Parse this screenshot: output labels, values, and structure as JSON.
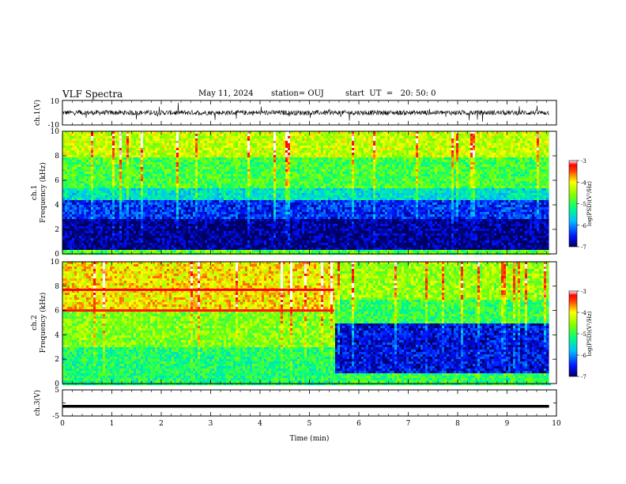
{
  "header": {
    "title": "VLF Spectra",
    "date": "May 11, 2024",
    "station": "station= OUJ",
    "start": "start  UT  =   20: 50: 0"
  },
  "chart_data": [
    {
      "type": "line",
      "panel": "ch1-waveform",
      "ylabel": "ch.1(V)",
      "ylim": [
        -10,
        10
      ],
      "yticks": [
        "10",
        "-10"
      ],
      "description_level": 0,
      "x_range_min": [
        0,
        9.85
      ]
    },
    {
      "type": "heatmap",
      "panel": "ch1-spectrogram",
      "ylabel": "ch.1\nFrequency (kHz)",
      "ylabel_lines": [
        "ch.1",
        "Frequency (kHz)"
      ],
      "ylim": [
        0,
        10
      ],
      "yticks": [
        "0",
        "2",
        "4",
        "6",
        "8",
        "10"
      ],
      "colorbar": {
        "label": "log(PSD)(V²/Hz)",
        "range": [
          -7,
          -3
        ],
        "ticks": [
          "-3",
          "-4",
          "-5",
          "-6",
          "-7"
        ]
      },
      "bands": [
        {
          "f_low": 8.0,
          "f_high": 10.0,
          "level": -4.3
        },
        {
          "f_low": 5.5,
          "f_high": 8.0,
          "level": -4.9
        },
        {
          "f_low": 4.5,
          "f_high": 5.5,
          "level": -5.5
        },
        {
          "f_low": 3.0,
          "f_high": 4.5,
          "level": -6.4
        },
        {
          "f_low": 0.5,
          "f_high": 3.0,
          "level": -6.9
        },
        {
          "f_low": 0.0,
          "f_high": 0.5,
          "level": -4.8
        }
      ]
    },
    {
      "type": "heatmap",
      "panel": "ch2-spectrogram",
      "ylabel_lines": [
        "ch.2",
        "Frequency (kHz)"
      ],
      "ylim": [
        0,
        10
      ],
      "yticks": [
        "0",
        "2",
        "4",
        "6",
        "8",
        "10"
      ],
      "colorbar": {
        "label": "log(PSD)(V²/Hz)",
        "range": [
          -7,
          -3
        ],
        "ticks": [
          "-3",
          "-4",
          "-5",
          "-6",
          "-7"
        ]
      },
      "segments": [
        {
          "t_start": 0,
          "t_end": 5.5,
          "bands": [
            {
              "f_low": 6.0,
              "f_high": 10.0,
              "level": -4.0
            },
            {
              "f_low": 3.0,
              "f_high": 6.0,
              "level": -4.6
            },
            {
              "f_low": 0.0,
              "f_high": 3.0,
              "level": -5.1
            }
          ]
        },
        {
          "t_start": 5.5,
          "t_end": 9.85,
          "bands": [
            {
              "f_low": 7.0,
              "f_high": 10.0,
              "level": -4.5
            },
            {
              "f_low": 5.0,
              "f_high": 7.0,
              "level": -5.0
            },
            {
              "f_low": 1.0,
              "f_high": 5.0,
              "level": -6.6
            },
            {
              "f_low": 0.0,
              "f_high": 1.0,
              "level": -5.0
            }
          ]
        }
      ],
      "lines": [
        {
          "freq": 7.7,
          "t_start": 0,
          "t_end": 5.5,
          "level": -3.2
        },
        {
          "freq": 6.0,
          "t_start": 0,
          "t_end": 5.5,
          "level": -3.3
        }
      ]
    },
    {
      "type": "line",
      "panel": "ch3-waveform",
      "ylabel": "ch.3(V)",
      "ylim": [
        -5,
        5
      ],
      "yticks": [
        "5",
        "0",
        "-5"
      ],
      "series": [
        {
          "x": [
            0,
            9.85
          ],
          "y": [
            -1.3,
            -1.3
          ]
        }
      ]
    }
  ],
  "xaxis": {
    "label": "Time  (min)",
    "ticks": [
      "0",
      "1",
      "2",
      "3",
      "4",
      "5",
      "6",
      "7",
      "8",
      "9",
      "10"
    ],
    "range": [
      0,
      10
    ]
  }
}
